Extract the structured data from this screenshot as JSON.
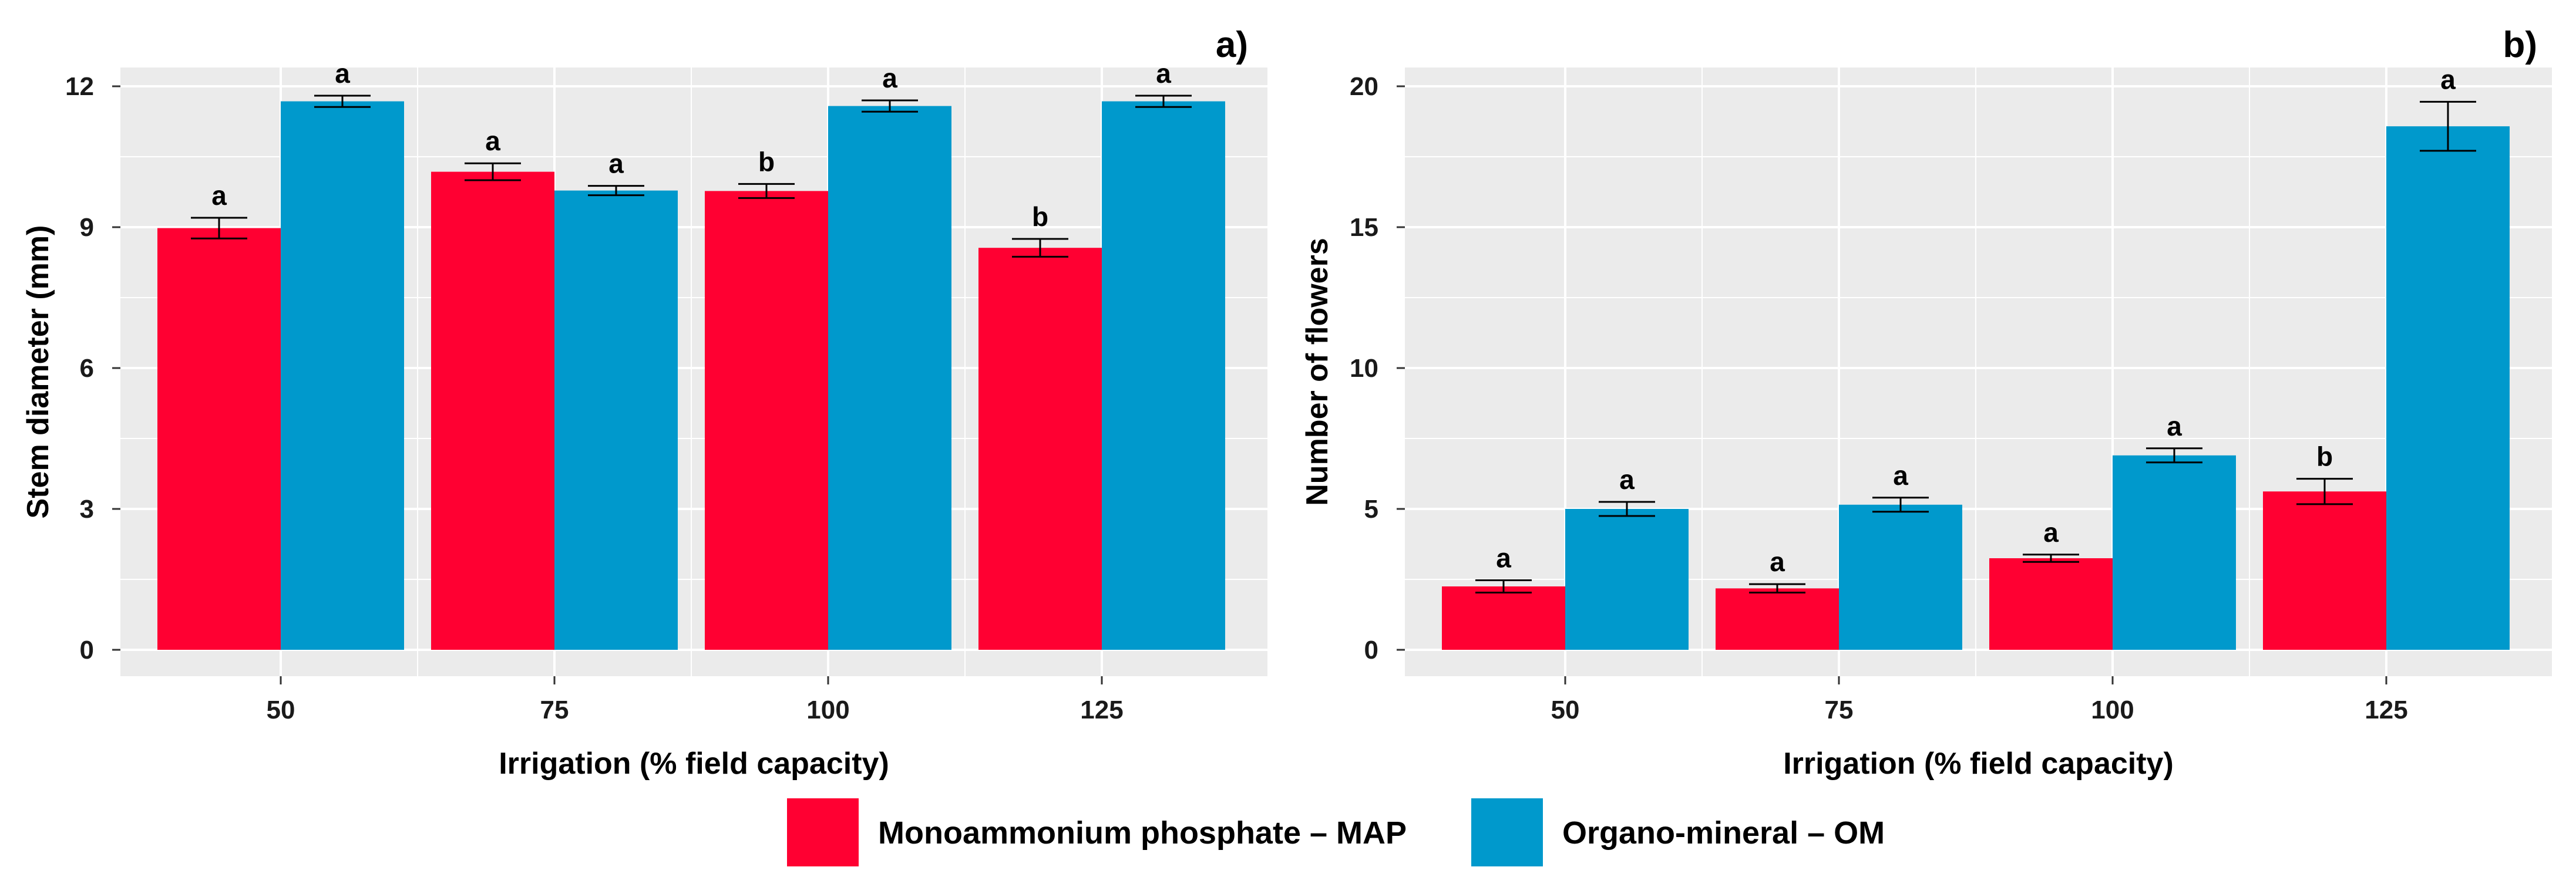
{
  "chart_data": [
    {
      "type": "bar",
      "panel_label": "a)",
      "xlabel": "Irrigation (% field capacity)",
      "ylabel": "Stem diameter (mm)",
      "categories": [
        "50",
        "75",
        "100",
        "125"
      ],
      "ylim": [
        0,
        12
      ],
      "yticks": [
        0,
        3,
        6,
        9,
        12
      ],
      "series": [
        {
          "name": "Monoammonium phosphate – MAP",
          "color": "#ff0032",
          "values": [
            8.98,
            10.18,
            9.77,
            8.56
          ],
          "errors": [
            0.22,
            0.18,
            0.15,
            0.19
          ],
          "letters": [
            "a",
            "a",
            "b",
            "b"
          ]
        },
        {
          "name": "Organo-mineral – OM",
          "color": "#0099cc",
          "values": [
            11.68,
            9.78,
            11.58,
            11.68
          ],
          "errors": [
            0.12,
            0.1,
            0.12,
            0.12
          ],
          "letters": [
            "a",
            "a",
            "a",
            "a"
          ]
        }
      ]
    },
    {
      "type": "bar",
      "panel_label": "b)",
      "xlabel": "Irrigation (% field capacity)",
      "ylabel": "Number of flowers",
      "categories": [
        "50",
        "75",
        "100",
        "125"
      ],
      "ylim": [
        0,
        20
      ],
      "yticks": [
        0,
        5,
        10,
        15,
        20
      ],
      "series": [
        {
          "name": "Monoammonium phosphate – MAP",
          "color": "#ff0032",
          "values": [
            2.25,
            2.18,
            3.25,
            5.62
          ],
          "errors": [
            0.22,
            0.15,
            0.13,
            0.45
          ],
          "letters": [
            "a",
            "a",
            "a",
            "b"
          ]
        },
        {
          "name": "Organo-mineral – OM",
          "color": "#0099cc",
          "values": [
            5.0,
            5.15,
            6.9,
            18.58
          ],
          "errors": [
            0.25,
            0.25,
            0.25,
            0.87
          ],
          "letters": [
            "a",
            "a",
            "a",
            "a"
          ]
        }
      ]
    }
  ],
  "legend": [
    {
      "label": "Monoammonium phosphate – MAP",
      "color": "#ff0032"
    },
    {
      "label": "Organo-mineral – OM",
      "color": "#0099cc"
    }
  ],
  "style": {
    "panel_background": "#ebebeb",
    "gridline_color": "#ffffff"
  }
}
